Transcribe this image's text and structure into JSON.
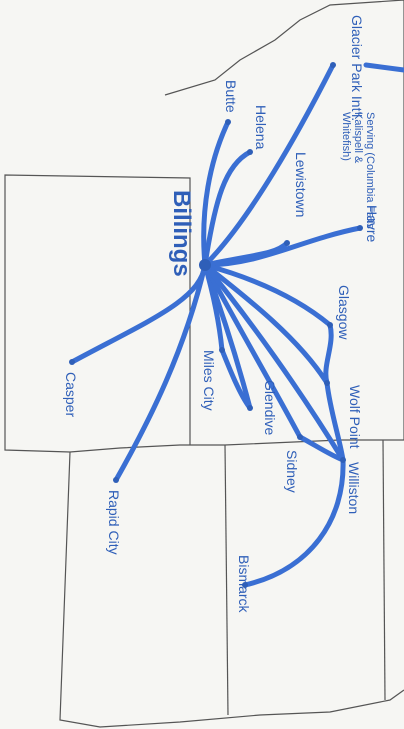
{
  "hub": "Billings",
  "cities": [
    {
      "name": "Glacier Park Int'l.",
      "note": [
        "Serving (Columbia Falls",
        "Kalispell &",
        "Whitefish)"
      ]
    },
    {
      "name": "Butte"
    },
    {
      "name": "Helena"
    },
    {
      "name": "Lewistown"
    },
    {
      "name": "Havre"
    },
    {
      "name": "Glasgow"
    },
    {
      "name": "Wolf Point"
    },
    {
      "name": "Miles City"
    },
    {
      "name": "Glendive"
    },
    {
      "name": "Sidney"
    },
    {
      "name": "Williston"
    },
    {
      "name": "Casper"
    },
    {
      "name": "Rapid City"
    },
    {
      "name": "Bismarck"
    }
  ]
}
